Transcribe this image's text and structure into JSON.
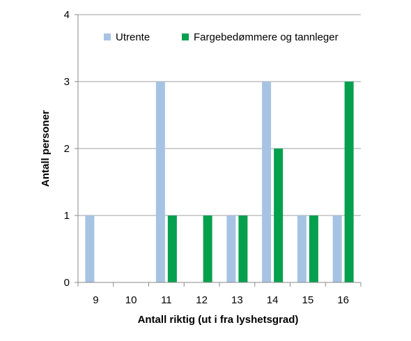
{
  "chart_data": {
    "type": "bar",
    "categories": [
      "9",
      "10",
      "11",
      "12",
      "13",
      "14",
      "15",
      "16"
    ],
    "series": [
      {
        "name": "Utrente",
        "color": "#a6c3e3",
        "values": [
          1,
          0,
          3,
          0,
          1,
          3,
          1,
          1
        ]
      },
      {
        "name": "Fargebedømmere og tannleger",
        "color": "#05a04e",
        "values": [
          0,
          0,
          1,
          1,
          1,
          2,
          1,
          3
        ]
      }
    ],
    "title": "",
    "xlabel": "Antall riktig (ut i fra lyshetsgrad)",
    "ylabel": "Antall personer",
    "ylim": [
      0,
      4
    ],
    "yticks": [
      "0",
      "1",
      "2",
      "3",
      "4"
    ],
    "grid": true,
    "legend_position": "top"
  }
}
